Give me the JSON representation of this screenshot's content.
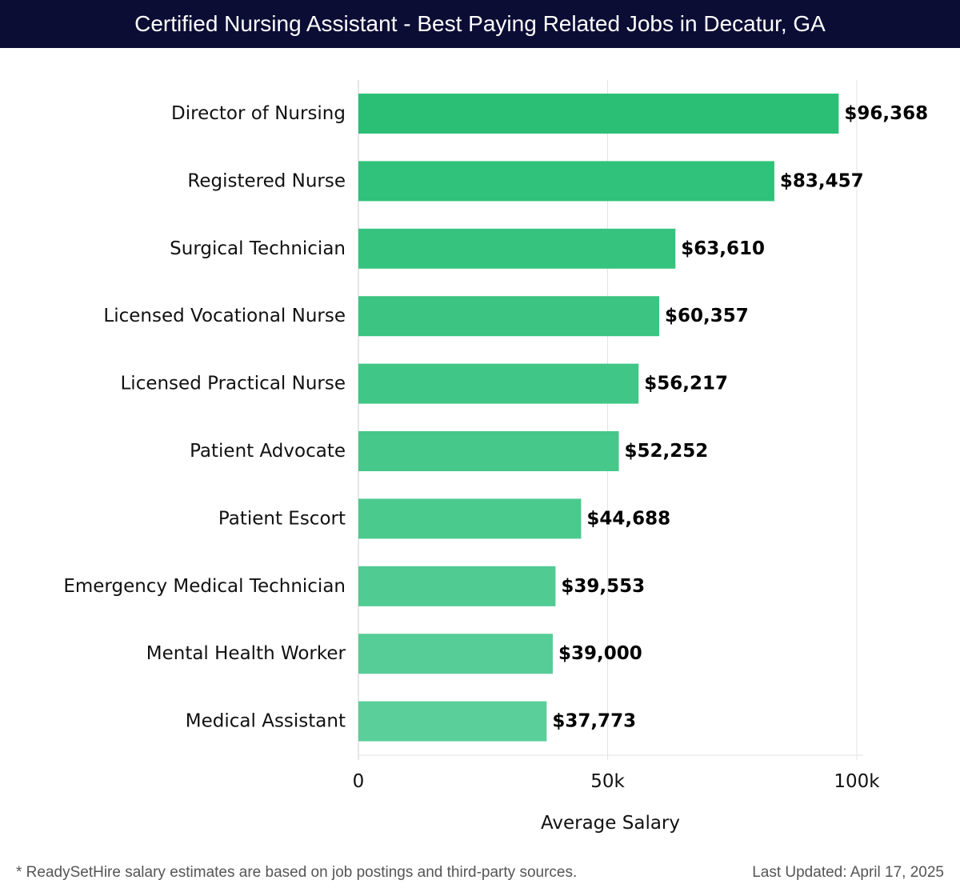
{
  "header": {
    "title": "Certified Nursing Assistant - Best Paying Related Jobs in Decatur, GA"
  },
  "chart_data": {
    "type": "bar",
    "orientation": "horizontal",
    "categories": [
      "Director of Nursing",
      "Registered Nurse",
      "Surgical Technician",
      "Licensed Vocational Nurse",
      "Licensed Practical Nurse",
      "Patient Advocate",
      "Patient Escort",
      "Emergency Medical Technician",
      "Mental Health Worker",
      "Medical Assistant"
    ],
    "values": [
      96368,
      83457,
      63610,
      60357,
      56217,
      52252,
      44688,
      39553,
      39000,
      37773
    ],
    "value_labels": [
      "$96,368",
      "$83,457",
      "$63,610",
      "$60,357",
      "$56,217",
      "$52,252",
      "$44,688",
      "$39,553",
      "$39,000",
      "$37,773"
    ],
    "xlabel": "Average Salary",
    "xlim": [
      0,
      100000
    ],
    "xticks": [
      0,
      50000,
      100000
    ],
    "xtick_labels": [
      "0",
      "50k",
      "100k"
    ],
    "grid": true,
    "colors": {
      "bar_top": "#2bbf76",
      "bar_bottom": "#5bcf9a",
      "grid": "#e3e3e3",
      "axis": "#cccccc"
    }
  },
  "footer": {
    "note": "* ReadySetHire salary estimates are based on job postings and third-party sources.",
    "updated": "Last Updated: April 17, 2025"
  }
}
